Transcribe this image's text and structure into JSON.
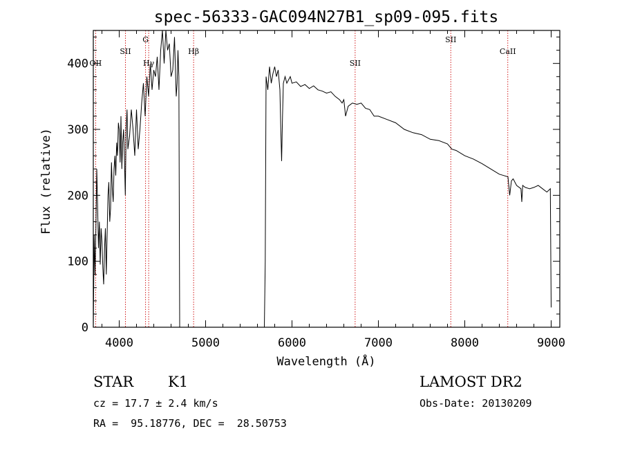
{
  "chart_data": {
    "type": "line",
    "title": "spec-56333-GAC094N27B1_sp09-095.fits",
    "xlabel": "Wavelength (Å)",
    "ylabel": "Flux (relative)",
    "xlim": [
      3700,
      9100
    ],
    "ylim": [
      0,
      450
    ],
    "xticks": [
      4000,
      5000,
      6000,
      7000,
      8000,
      9000
    ],
    "yticks": [
      0,
      100,
      200,
      300,
      400
    ],
    "grid": false,
    "series": [
      {
        "values_x": [
          3700,
          3710,
          3720,
          3730,
          3740,
          3750,
          3760,
          3770,
          3780,
          3790,
          3800,
          3810,
          3820,
          3830,
          3840,
          3850,
          3860,
          3870,
          3880,
          3890,
          3900,
          3910,
          3920,
          3930,
          3940,
          3950,
          3960,
          3970,
          3980,
          3990,
          4000,
          4010,
          4020,
          4030,
          4040,
          4050,
          4060,
          4070,
          4080,
          4090,
          4100,
          4120,
          4140,
          4160,
          4180,
          4200,
          4220,
          4240,
          4260,
          4280,
          4300,
          4320,
          4340,
          4360,
          4380,
          4400,
          4420,
          4440,
          4460,
          4480,
          4500,
          4520,
          4540,
          4560,
          4580,
          4600,
          4620,
          4640,
          4660,
          4670,
          4680,
          4690,
          4700,
          4710,
          4720,
          5680,
          5690,
          5700,
          5720,
          5740,
          5760,
          5780,
          5800,
          5820,
          5840,
          5860,
          5870,
          5880,
          5890,
          5900,
          5920,
          5940,
          5960,
          5980,
          6000,
          6050,
          6100,
          6150,
          6200,
          6250,
          6300,
          6350,
          6400,
          6450,
          6500,
          6550,
          6580,
          6600,
          6620,
          6650,
          6700,
          6750,
          6800,
          6850,
          6900,
          6950,
          7000,
          7100,
          7200,
          7300,
          7400,
          7500,
          7600,
          7700,
          7800,
          7850,
          7900,
          8000,
          8100,
          8200,
          8300,
          8400,
          8450,
          8500,
          8520,
          8540,
          8560,
          8600,
          8650,
          8660,
          8670,
          8700,
          8750,
          8800,
          8850,
          8900,
          8950,
          8990,
          9000
        ],
        "values": [
          0,
          140,
          80,
          150,
          240,
          180,
          120,
          160,
          95,
          150,
          130,
          90,
          65,
          120,
          150,
          80,
          140,
          200,
          220,
          160,
          180,
          250,
          210,
          190,
          240,
          260,
          230,
          280,
          260,
          310,
          300,
          250,
          320,
          240,
          280,
          300,
          260,
          200,
          300,
          330,
          270,
          290,
          330,
          300,
          260,
          330,
          270,
          300,
          340,
          370,
          320,
          380,
          350,
          400,
          360,
          390,
          380,
          410,
          360,
          420,
          450,
          400,
          450,
          420,
          430,
          380,
          390,
          440,
          350,
          370,
          420,
          380,
          0,
          0,
          0,
          0,
          100,
          380,
          360,
          395,
          370,
          385,
          395,
          380,
          390,
          360,
          300,
          252,
          320,
          370,
          380,
          370,
          375,
          380,
          370,
          372,
          365,
          368,
          362,
          366,
          360,
          358,
          355,
          357,
          350,
          345,
          340,
          345,
          320,
          335,
          340,
          338,
          340,
          332,
          330,
          320,
          320,
          315,
          310,
          300,
          295,
          292,
          285,
          283,
          278,
          270,
          268,
          260,
          255,
          248,
          240,
          232,
          230,
          228,
          200,
          222,
          225,
          215,
          210,
          190,
          215,
          212,
          210,
          212,
          215,
          210,
          205,
          210,
          30
        ]
      }
    ],
    "spectral_lines": [
      {
        "label": "OII",
        "x": 3727,
        "level": "low"
      },
      {
        "label": "SII",
        "x": 4072,
        "level": "mid"
      },
      {
        "label": "G",
        "x": 4305,
        "level": "high"
      },
      {
        "label": "Hγ",
        "x": 4341,
        "level": "low"
      },
      {
        "label": "Hβ",
        "x": 4861,
        "level": "mid"
      },
      {
        "label": "SII",
        "x": 6731,
        "level": "low"
      },
      {
        "label": "SII",
        "x": 7838,
        "level": "high"
      },
      {
        "label": "CaII",
        "x": 8498,
        "level": "mid"
      }
    ]
  },
  "info": {
    "object_class": "STAR",
    "subclass": "K1",
    "survey": "LAMOST DR2",
    "cz": "cz = 17.7 ± 2.4 km/s",
    "obs_date": "Obs-Date: 20130209",
    "coords": "RA =  95.18776, DEC =  28.50753"
  },
  "colors": {
    "spectrum": "#000000",
    "line_markers": "#cc0000",
    "axes": "#000000"
  }
}
